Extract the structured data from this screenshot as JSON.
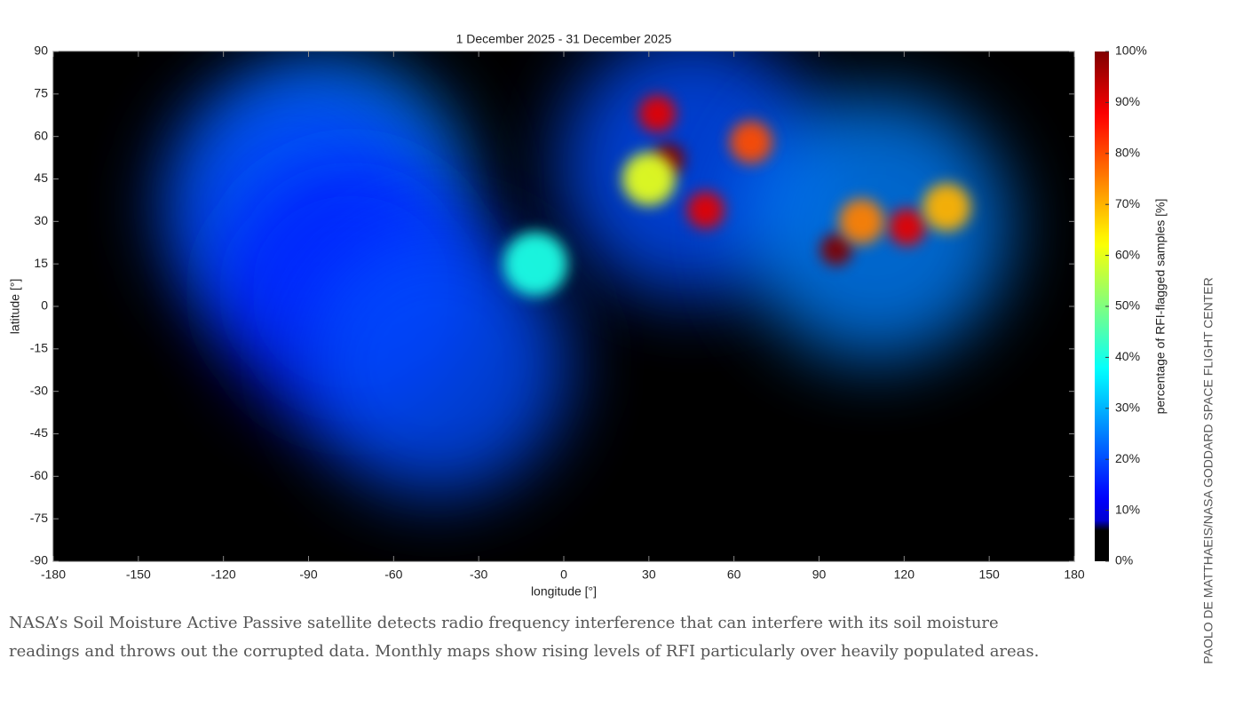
{
  "chart_data": {
    "type": "map",
    "title": "1 December 2025 - 31 December 2025",
    "x_label": "longitude [°]",
    "y_label": "latitude [°]",
    "xlim": [
      -180,
      180
    ],
    "xticks": [
      -180,
      -150,
      -120,
      -90,
      -60,
      -30,
      0,
      30,
      60,
      90,
      120,
      150,
      180
    ],
    "ylim": [
      -90,
      90
    ],
    "yticks": [
      -90,
      -75,
      -60,
      -45,
      -30,
      -15,
      0,
      15,
      30,
      45,
      60,
      75,
      90
    ],
    "colorbar_label": "percentage of RFI-flagged samples [%]",
    "clim": [
      0,
      100
    ],
    "cticks": [
      {
        "value": 0,
        "label": "0%"
      },
      {
        "value": 10,
        "label": "10%"
      },
      {
        "value": 20,
        "label": "20%"
      },
      {
        "value": 30,
        "label": "30%"
      },
      {
        "value": 40,
        "label": "40%"
      },
      {
        "value": 50,
        "label": "50%"
      },
      {
        "value": 60,
        "label": "60%"
      },
      {
        "value": 70,
        "label": "70%"
      },
      {
        "value": 80,
        "label": "80%"
      },
      {
        "value": 90,
        "label": "90%"
      },
      {
        "value": 100,
        "label": "100%"
      }
    ],
    "hotspots": {
      "lon": [
        45,
        110,
        37,
        33,
        50,
        66,
        96,
        121,
        135,
        30,
        -80,
        -95,
        -75,
        -45,
        -10,
        105
      ],
      "lat": [
        50,
        28,
        52,
        68,
        34,
        58,
        20,
        28,
        35,
        45,
        40,
        35,
        5,
        -20,
        15,
        30
      ],
      "values": [
        20,
        25,
        100,
        90,
        90,
        80,
        100,
        90,
        70,
        60,
        25,
        20,
        15,
        20,
        40,
        75
      ]
    }
  },
  "caption": [
    "NASA’s Soil Moisture Active Passive satellite detects radio frequency interference that can interfere with its soil moisture",
    "readings and throws out the corrupted data. Monthly maps show rising levels of RFI particularly over heavily populated areas."
  ],
  "credit": "PAOLO DE MATTHAEIS/NASA GODDARD SPACE FLIGHT CENTER"
}
